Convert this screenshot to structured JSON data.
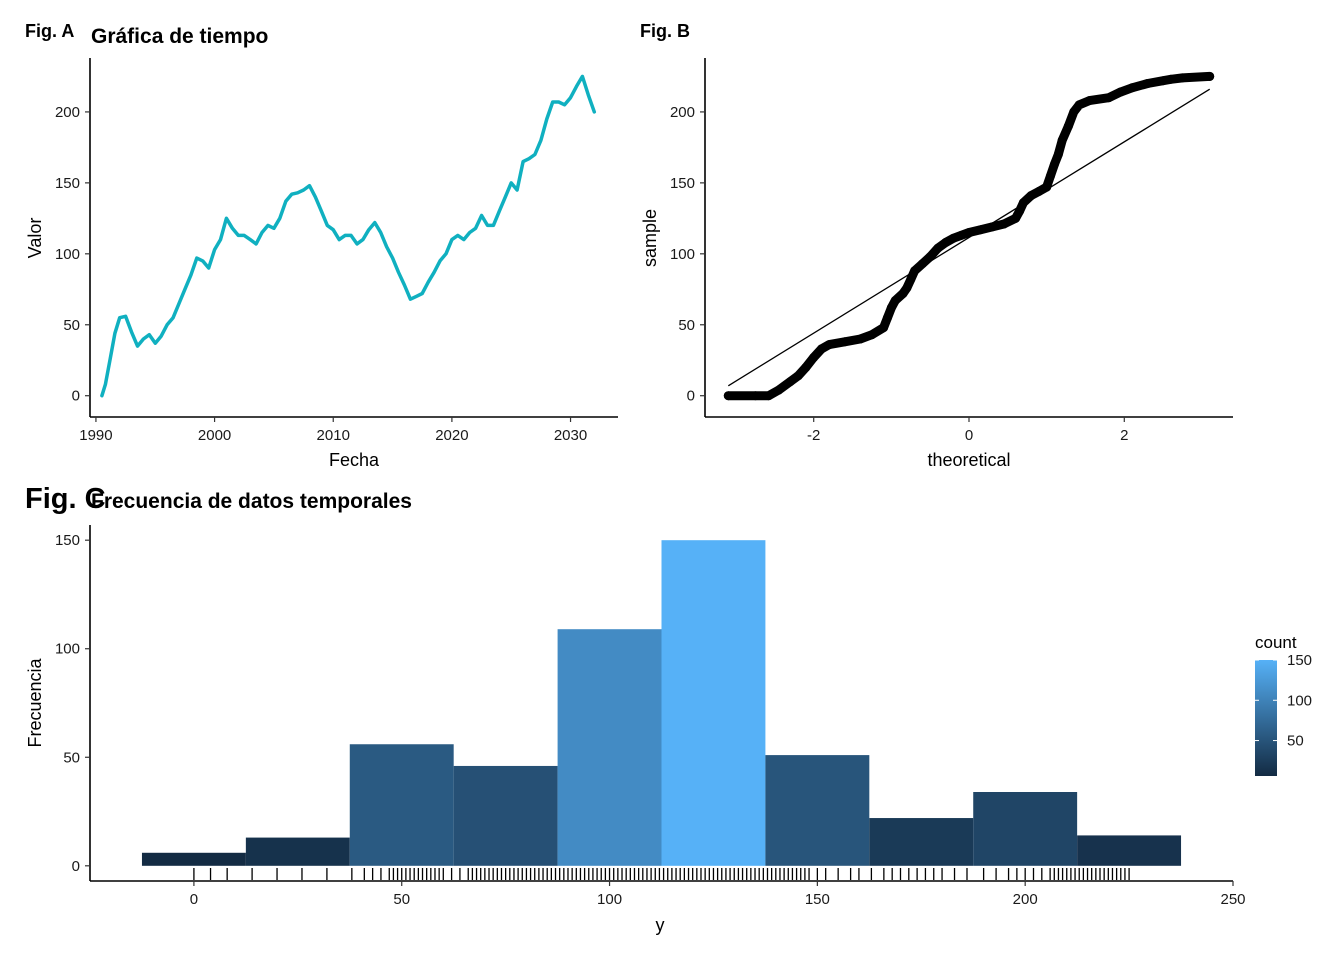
{
  "figure_tags": {
    "a": "Fig. A",
    "b": "Fig. B",
    "c": "Fig. C"
  },
  "chart_data": [
    {
      "id": "A",
      "type": "line",
      "title": "Gráfica de tiempo",
      "xlabel": "Fecha",
      "ylabel": "Valor",
      "xlim": [
        1989.5,
        2034
      ],
      "ylim": [
        -15,
        238
      ],
      "x_ticks": [
        1990,
        2000,
        2010,
        2020,
        2030
      ],
      "y_ticks": [
        0,
        50,
        100,
        150,
        200
      ],
      "grid": false,
      "line_color": "#10b0c0",
      "x": [
        1990.5,
        1990.8,
        1991.2,
        1991.6,
        1992.0,
        1992.5,
        1993.0,
        1993.5,
        1994.0,
        1994.5,
        1995.0,
        1995.5,
        1996.0,
        1996.5,
        1997.0,
        1997.5,
        1998.0,
        1998.5,
        1999.0,
        1999.5,
        2000.0,
        2000.5,
        2001.0,
        2001.5,
        2002.0,
        2002.5,
        2003.0,
        2003.5,
        2004.0,
        2004.5,
        2005.0,
        2005.5,
        2006.0,
        2006.5,
        2007.0,
        2007.5,
        2008.0,
        2008.5,
        2009.0,
        2009.5,
        2010.0,
        2010.5,
        2011.0,
        2011.5,
        2012.0,
        2012.5,
        2013.0,
        2013.5,
        2014.0,
        2014.5,
        2015.0,
        2015.5,
        2016.0,
        2016.5,
        2017.0,
        2017.5,
        2018.0,
        2018.5,
        2019.0,
        2019.5,
        2020.0,
        2020.5,
        2021.0,
        2021.5,
        2022.0,
        2022.5,
        2023.0,
        2023.5,
        2024.0,
        2024.5,
        2025.0,
        2025.5,
        2026.0,
        2026.5,
        2027.0,
        2027.5,
        2028.0,
        2028.5,
        2029.0,
        2029.5,
        2030.0,
        2030.5,
        2031.0,
        2031.5,
        2032.0
      ],
      "y": [
        0,
        8,
        26,
        44,
        55,
        56,
        45,
        35,
        40,
        43,
        37,
        42,
        50,
        55,
        65,
        75,
        85,
        97,
        95,
        90,
        103,
        110,
        125,
        118,
        113,
        113,
        110,
        107,
        115,
        120,
        118,
        125,
        137,
        142,
        143,
        145,
        148,
        140,
        130,
        120,
        117,
        110,
        113,
        113,
        107,
        110,
        117,
        122,
        115,
        105,
        97,
        87,
        78,
        68,
        70,
        72,
        80,
        87,
        95,
        100,
        110,
        113,
        110,
        115,
        118,
        127,
        120,
        120,
        130,
        140,
        150,
        145,
        165,
        167,
        170,
        180,
        195,
        207,
        207,
        205,
        210,
        218,
        225,
        212,
        200
      ]
    },
    {
      "id": "B",
      "type": "scatter",
      "xlabel": "theoretical",
      "ylabel": "sample",
      "xlim": [
        -3.4,
        3.4
      ],
      "ylim": [
        -15,
        238
      ],
      "x_ticks": [
        -2,
        0,
        2
      ],
      "y_ticks": [
        0,
        50,
        100,
        150,
        200
      ],
      "grid": false,
      "point_color": "#000000",
      "qq_points": [
        [
          -3.1,
          0
        ],
        [
          -2.75,
          0
        ],
        [
          -2.58,
          0
        ],
        [
          -2.45,
          4
        ],
        [
          -2.3,
          10
        ],
        [
          -2.2,
          14
        ],
        [
          -2.1,
          20
        ],
        [
          -2.0,
          27
        ],
        [
          -1.9,
          33
        ],
        [
          -1.8,
          36
        ],
        [
          -1.6,
          38
        ],
        [
          -1.4,
          40
        ],
        [
          -1.25,
          43
        ],
        [
          -1.1,
          48
        ],
        [
          -1.05,
          55
        ],
        [
          -1.0,
          62
        ],
        [
          -0.95,
          67
        ],
        [
          -0.85,
          72
        ],
        [
          -0.8,
          76
        ],
        [
          -0.75,
          82
        ],
        [
          -0.7,
          88
        ],
        [
          -0.6,
          93
        ],
        [
          -0.5,
          98
        ],
        [
          -0.4,
          104
        ],
        [
          -0.3,
          108
        ],
        [
          -0.2,
          111
        ],
        [
          -0.1,
          113
        ],
        [
          0.0,
          115
        ],
        [
          0.15,
          117
        ],
        [
          0.3,
          119
        ],
        [
          0.45,
          121
        ],
        [
          0.6,
          125
        ],
        [
          0.65,
          130
        ],
        [
          0.7,
          136
        ],
        [
          0.8,
          141
        ],
        [
          0.9,
          144
        ],
        [
          1.0,
          147
        ],
        [
          1.05,
          155
        ],
        [
          1.1,
          163
        ],
        [
          1.15,
          170
        ],
        [
          1.2,
          180
        ],
        [
          1.28,
          190
        ],
        [
          1.35,
          200
        ],
        [
          1.42,
          205
        ],
        [
          1.55,
          208
        ],
        [
          1.8,
          210
        ],
        [
          1.95,
          214
        ],
        [
          2.1,
          217
        ],
        [
          2.3,
          220
        ],
        [
          2.5,
          222
        ],
        [
          2.6,
          223
        ],
        [
          2.75,
          224
        ],
        [
          3.1,
          225
        ]
      ],
      "qq_line": [
        [
          -3.1,
          7
        ],
        [
          3.1,
          216
        ]
      ]
    },
    {
      "id": "C",
      "type": "bar",
      "title": "Frecuencia de datos temporales",
      "xlabel": "y",
      "ylabel": "Frecuencia",
      "xlim": [
        -25,
        250
      ],
      "ylim": [
        -7,
        157
      ],
      "x_ticks": [
        0,
        50,
        100,
        150,
        200,
        250
      ],
      "y_ticks": [
        0,
        50,
        100,
        150
      ],
      "grid": false,
      "bin_width": 25,
      "bin_starts": [
        -12.5,
        12.5,
        37.5,
        62.5,
        87.5,
        112.5,
        137.5,
        162.5,
        187.5,
        212.5
      ],
      "counts": [
        6,
        13,
        56,
        46,
        109,
        150,
        51,
        22,
        34,
        14
      ],
      "fill_low": "#132b43",
      "fill_high": "#56b1f7",
      "legend": {
        "title": "count",
        "labels": [
          "150",
          "100",
          "50"
        ],
        "label_values": [
          150,
          100,
          50
        ],
        "placement": "right"
      },
      "rug": [
        0,
        4,
        8,
        14,
        20,
        26,
        32,
        38,
        41,
        43,
        45,
        47,
        48,
        49,
        50,
        51,
        52,
        53,
        54,
        55,
        56,
        57,
        58,
        59,
        60,
        62,
        64,
        66,
        67,
        68,
        69,
        70,
        71,
        72,
        73,
        74,
        75,
        76,
        77,
        78,
        79,
        80,
        81,
        82,
        83,
        84,
        85,
        86,
        87,
        88,
        89,
        90,
        91,
        92,
        93,
        94,
        95,
        96,
        97,
        98,
        99,
        100,
        101,
        102,
        103,
        104,
        105,
        106,
        107,
        108,
        109,
        110,
        111,
        112,
        113,
        114,
        115,
        116,
        117,
        118,
        119,
        120,
        121,
        122,
        123,
        124,
        125,
        126,
        127,
        128,
        129,
        130,
        131,
        132,
        133,
        134,
        135,
        136,
        137,
        138,
        139,
        140,
        141,
        142,
        143,
        144,
        145,
        146,
        147,
        148,
        150,
        152,
        155,
        158,
        160,
        163,
        166,
        168,
        170,
        172,
        174,
        176,
        178,
        180,
        183,
        186,
        190,
        193,
        196,
        198,
        200,
        202,
        204,
        206,
        207,
        208,
        209,
        210,
        211,
        212,
        213,
        214,
        215,
        216,
        217,
        218,
        219,
        220,
        221,
        222,
        223,
        224,
        225
      ]
    }
  ]
}
